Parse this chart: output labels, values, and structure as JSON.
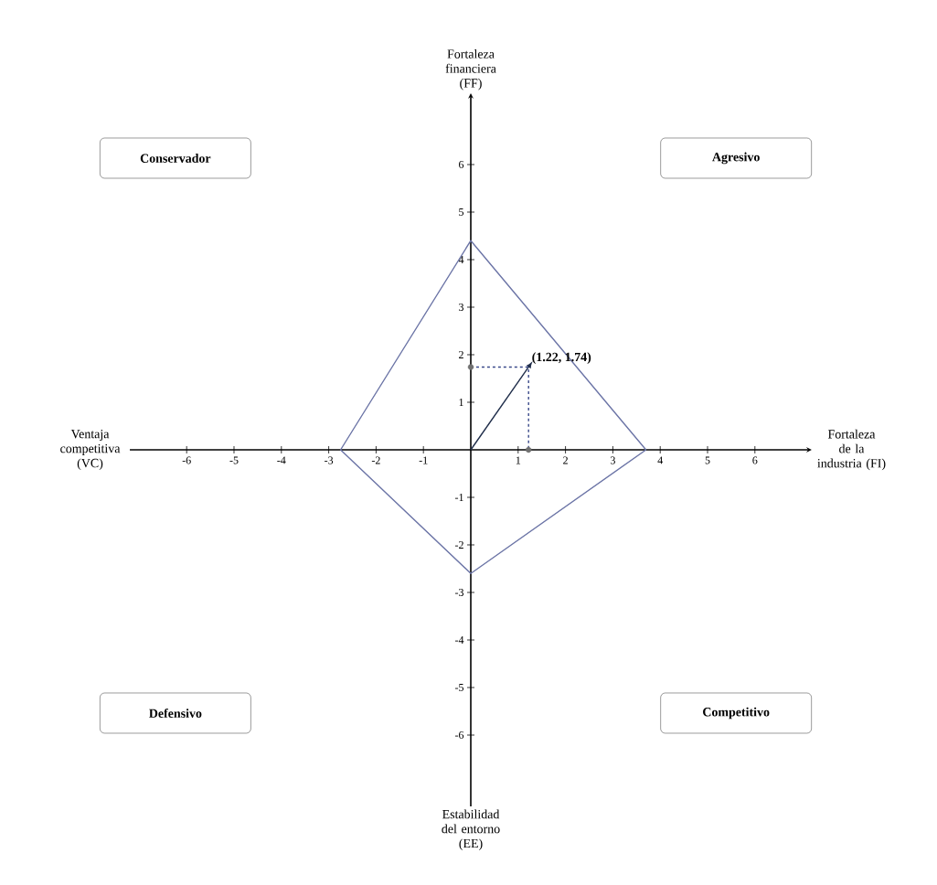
{
  "chart_data": {
    "type": "line",
    "xlabel": "Fortaleza de la industria (FI)",
    "ylabel": "Fortaleza financiera (FF)",
    "xlim": [
      -7.2,
      7.2
    ],
    "ylim": [
      -7.5,
      7.5
    ],
    "xticks": [
      -6,
      -5,
      -4,
      -3,
      -2,
      -1,
      1,
      2,
      3,
      4,
      5,
      6
    ],
    "yticks": [
      -6,
      -5,
      -4,
      -3,
      -2,
      -1,
      1,
      2,
      3,
      4,
      5,
      6
    ],
    "grid": false,
    "series": [
      {
        "color": "#6b74a6",
        "x": [
          -2.75,
          0,
          3.7
        ],
        "values": [
          0,
          4.4,
          0
        ],
        "marker": "none",
        "line_style": "solid"
      },
      {
        "color": "#6b74a6",
        "x": [
          -2.75,
          0,
          3.7
        ],
        "values": [
          0,
          -2.6,
          0
        ],
        "marker": "none",
        "line_style": "solid"
      },
      {
        "color": "#1f2d4a",
        "x": [
          0,
          1.22
        ],
        "values": [
          0,
          1.74
        ],
        "marker": "none",
        "line_style": "solid"
      },
      {
        "color": "#3a4a8a",
        "x": [
          0,
          1.22,
          1.22
        ],
        "values": [
          1.74,
          1.74,
          0
        ],
        "marker": "none",
        "line_style": "dashed"
      },
      {
        "type": "scatter",
        "color": "#707070",
        "x": [
          0,
          1.22
        ],
        "values": [
          1.74,
          0
        ],
        "marker": "circle"
      }
    ],
    "annotations": [
      {
        "text": "(1.22, 1.74)",
        "x": 1.22,
        "y": 1.74
      },
      "Conservador",
      "Agresivo",
      "Defensivo",
      "Competitivo",
      "Ventaja competitiva (VC)",
      "Estabilidad del entorno (EE)"
    ]
  }
}
